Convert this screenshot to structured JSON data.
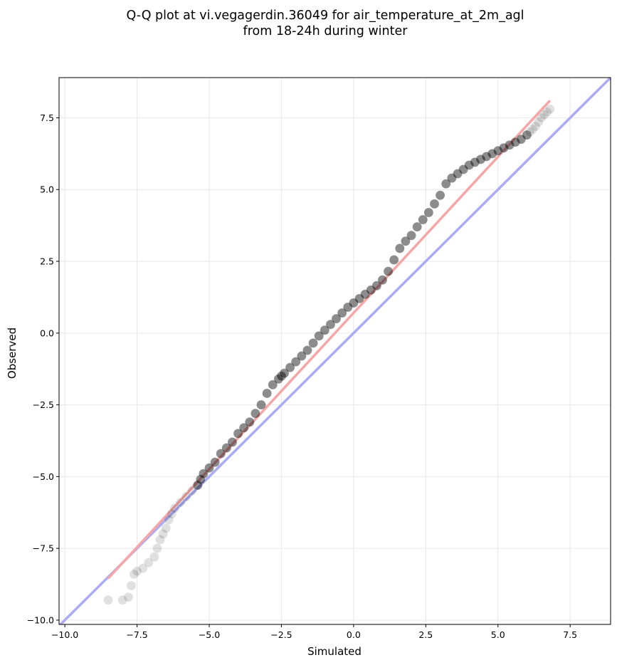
{
  "chart_data": {
    "type": "scatter",
    "title_line1": "Q-Q plot at vi.vegagerdin.36049 for air_temperature_at_2m_agl",
    "title_line2": "from 18-24h during winter",
    "xlabel": "Simulated",
    "ylabel": "Observed",
    "xlim": [
      -10.2,
      8.9
    ],
    "ylim": [
      -10.15,
      8.9
    ],
    "xticks": [
      -10.0,
      -7.5,
      -5.0,
      -2.5,
      0.0,
      2.5,
      5.0,
      7.5
    ],
    "yticks": [
      -10.0,
      -7.5,
      -5.0,
      -2.5,
      0.0,
      2.5,
      5.0,
      7.5
    ],
    "xtick_labels": [
      "−10.0",
      "−7.5",
      "−5.0",
      "−2.5",
      "0.0",
      "2.5",
      "5.0",
      "7.5"
    ],
    "ytick_labels": [
      "−10.0",
      "−7.5",
      "−5.0",
      "−2.5",
      "0.0",
      "2.5",
      "5.0",
      "7.5"
    ],
    "grid": true,
    "identity_line": {
      "color": "#aaaaf5",
      "from": [
        -10.2,
        -10.2
      ],
      "to": [
        8.9,
        8.9
      ]
    },
    "fit_line": {
      "color": "#f5a6a6",
      "from": [
        -8.5,
        -8.55
      ],
      "to": [
        6.8,
        8.1
      ]
    },
    "point_color": "#000000",
    "quantiles": {
      "x": [
        -8.5,
        -8.0,
        -7.8,
        -7.7,
        -7.6,
        -7.5,
        -7.3,
        -7.1,
        -6.9,
        -6.8,
        -6.7,
        -6.6,
        -6.5,
        -6.4,
        -6.3,
        -6.2,
        -6.0,
        -5.8,
        -5.6,
        -5.4,
        -5.3,
        -5.2,
        -5.0,
        -4.8,
        -4.6,
        -4.4,
        -4.2,
        -4.0,
        -3.8,
        -3.6,
        -3.4,
        -3.2,
        -3.0,
        -2.8,
        -2.6,
        -2.5,
        -2.4,
        -2.2,
        -2.0,
        -1.8,
        -1.6,
        -1.4,
        -1.2,
        -1.0,
        -0.8,
        -0.6,
        -0.4,
        -0.2,
        0.0,
        0.2,
        0.4,
        0.6,
        0.8,
        1.0,
        1.2,
        1.4,
        1.6,
        1.8,
        2.0,
        2.2,
        2.4,
        2.6,
        2.8,
        3.0,
        3.2,
        3.4,
        3.6,
        3.8,
        4.0,
        4.2,
        4.4,
        4.6,
        4.8,
        5.0,
        5.2,
        5.4,
        5.6,
        5.8,
        6.0,
        6.1,
        6.2,
        6.3,
        6.4,
        6.5,
        6.6,
        6.7,
        6.8
      ],
      "y": [
        -9.3,
        -9.3,
        -9.2,
        -8.8,
        -8.4,
        -8.3,
        -8.2,
        -8.0,
        -7.8,
        -7.5,
        -7.2,
        -7.0,
        -6.8,
        -6.5,
        -6.3,
        -6.1,
        -5.9,
        -5.7,
        -5.5,
        -5.3,
        -5.1,
        -4.9,
        -4.7,
        -4.5,
        -4.2,
        -4.0,
        -3.8,
        -3.5,
        -3.3,
        -3.1,
        -2.8,
        -2.5,
        -2.1,
        -1.8,
        -1.6,
        -1.5,
        -1.4,
        -1.2,
        -1.0,
        -0.8,
        -0.6,
        -0.35,
        -0.1,
        0.1,
        0.3,
        0.5,
        0.7,
        0.9,
        1.05,
        1.2,
        1.35,
        1.5,
        1.65,
        1.85,
        2.15,
        2.55,
        2.95,
        3.2,
        3.4,
        3.7,
        3.95,
        4.2,
        4.5,
        4.8,
        5.2,
        5.4,
        5.55,
        5.7,
        5.85,
        5.95,
        6.05,
        6.15,
        6.25,
        6.35,
        6.45,
        6.55,
        6.65,
        6.75,
        6.9,
        7.0,
        7.1,
        7.2,
        7.35,
        7.5,
        7.6,
        7.7,
        7.8
      ]
    }
  }
}
